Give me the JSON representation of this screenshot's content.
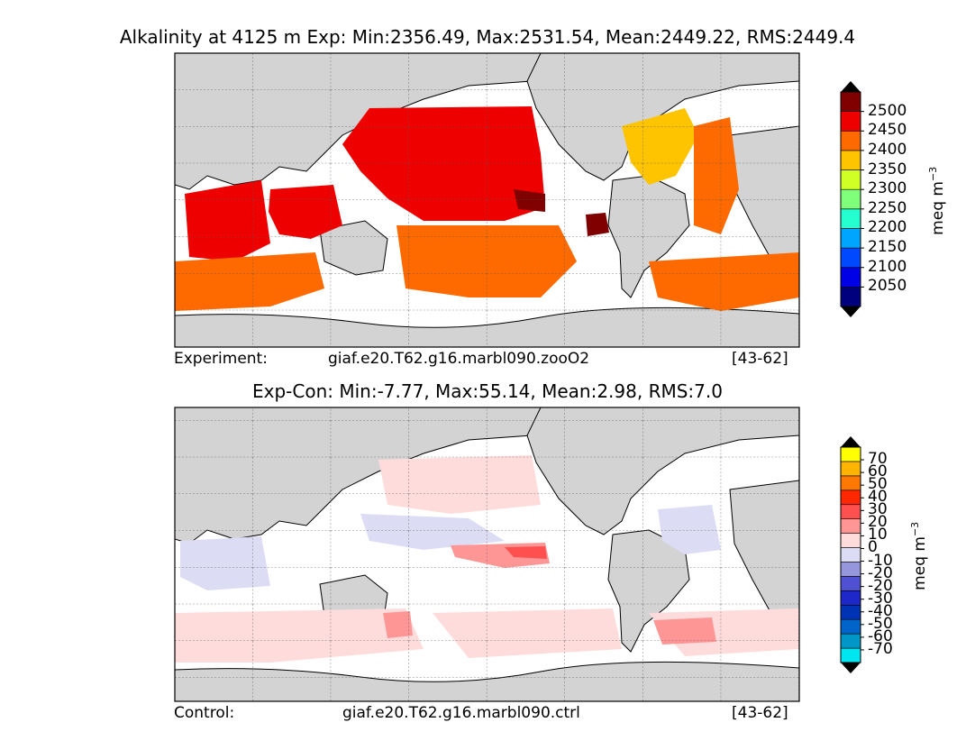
{
  "panels": [
    {
      "title": "Alkalinity at 4125 m Exp: Min:2356.49, Max:2531.54, Mean:2449.22, RMS:2449.4",
      "caption_label": "Experiment:",
      "caption_case": "giaf.e20.T62.g16.marbl090.zooO2",
      "caption_years": "[43-62]",
      "colorbar": {
        "unit": "meq m",
        "unit_exp": "−3",
        "colors": [
          "#00007f",
          "#0000e6",
          "#0049ff",
          "#00a5ff",
          "#25ffcf",
          "#7fff7a",
          "#d0ff26",
          "#ffc400",
          "#ff6a00",
          "#ee0000",
          "#800000"
        ],
        "over_color": "#000000",
        "under_color": "#000000",
        "ticks": [
          "2500",
          "2450",
          "2400",
          "2350",
          "2300",
          "2250",
          "2200",
          "2150",
          "2100",
          "2050"
        ]
      }
    },
    {
      "title": "Exp-Con: Min:-7.77, Max:55.14, Mean:2.98, RMS:7.0",
      "caption_label": "Control:",
      "caption_case": "giaf.e20.T62.g16.marbl090.ctrl",
      "caption_years": "[43-62]",
      "colorbar": {
        "unit": "meq m",
        "unit_exp": "−3",
        "colors": [
          "#00e6f0",
          "#0096c8",
          "#0064c8",
          "#0032b4",
          "#1e28c8",
          "#5050d2",
          "#9696dc",
          "#dcdcf5",
          "#ffdcdc",
          "#ff9696",
          "#ff5050",
          "#ff2800",
          "#ff7800",
          "#ffb400",
          "#ffff00"
        ],
        "over_color": "#000000",
        "under_color": "#000000",
        "ticks": [
          "70",
          "60",
          "50",
          "40",
          "30",
          "20",
          "10",
          "0",
          "-10",
          "-20",
          "-20",
          "-30",
          "-40",
          "-50",
          "-60",
          "-70"
        ]
      }
    }
  ],
  "legend": {
    "land_color": "#d3d3d3",
    "colors": {
      "deep_red": "#ee0000",
      "orange": "#ff6a00",
      "yellow": "#ffc400",
      "dark_red": "#800000",
      "light_pink": "#ffdcdc",
      "pink": "#ff9696",
      "light_blue": "#dcdcf5"
    }
  }
}
